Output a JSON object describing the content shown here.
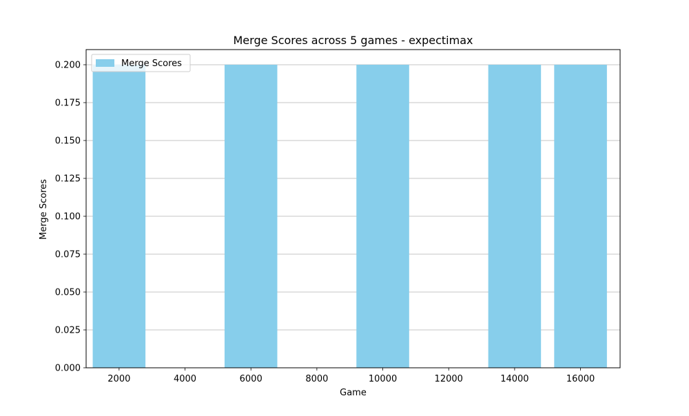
{
  "chart_data": {
    "type": "bar",
    "title": "Merge Scores across 5 games - expectimax",
    "xlabel": "Game",
    "ylabel": "Merge Scores",
    "x": [
      2000,
      6000,
      10000,
      14000,
      16000
    ],
    "series": [
      {
        "name": "Merge Scores",
        "values": [
          0.2,
          0.2,
          0.2,
          0.2,
          0.2
        ],
        "color": "#87ceeb"
      }
    ],
    "bar_width": 1600,
    "xlim": [
      1000,
      17200
    ],
    "ylim": [
      0,
      0.21
    ],
    "xticks": [
      2000,
      4000,
      6000,
      8000,
      10000,
      12000,
      14000,
      16000
    ],
    "yticks": [
      0.0,
      0.025,
      0.05,
      0.075,
      0.1,
      0.125,
      0.15,
      0.175,
      0.2
    ],
    "ytick_decimals": 3,
    "grid": "y",
    "legend_position": "top-left"
  }
}
